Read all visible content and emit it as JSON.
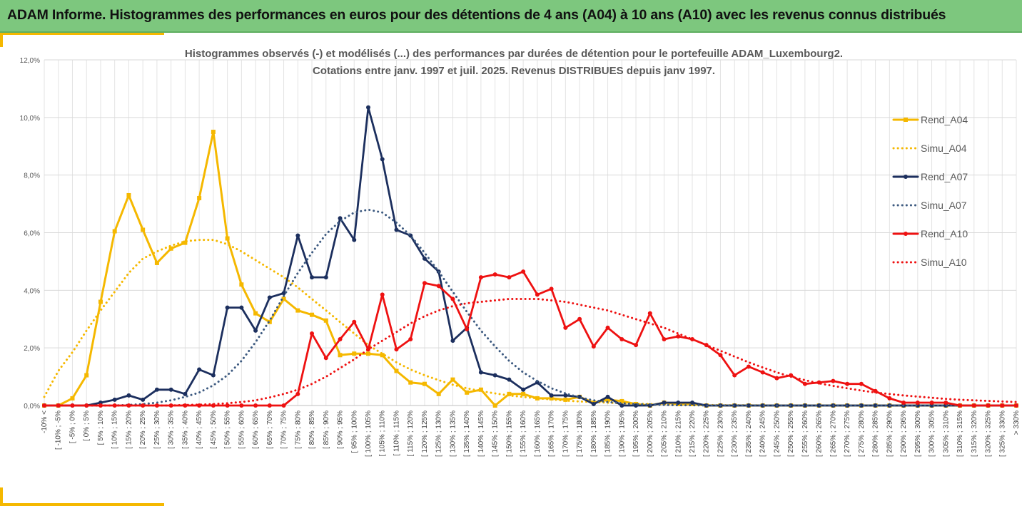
{
  "banner": {
    "title": "ADAM Informe. Histogrammes des performances en euros pour des détentions de 4 ans (A04) à 10 ans (A10) avec les revenus connus distribués"
  },
  "chart_data": {
    "type": "line",
    "title_line1": "Histogrammes observés (-) et modélisés (...) des performances par durées de détention pour le portefeuille ADAM_Luxembourg2.",
    "title_line2": "Cotations entre janv. 1997 et juil. 2025. Revenus DISTRIBUES depuis janv 1997.",
    "ylim": [
      0,
      12
    ],
    "yticks": [
      "0,0%",
      "2,0%",
      "4,0%",
      "6,0%",
      "8,0%",
      "10,0%",
      "12,0%"
    ],
    "grid": true,
    "legend_position": "right",
    "categories": [
      "-10% <",
      "[ -10% ; -5%",
      "[ -5% ; 0%",
      "[ 0% ; 5%",
      "[ 5% ; 10%",
      "[ 10% ; 15%",
      "[ 15% ; 20%",
      "[ 20% ; 25%",
      "[ 25% ; 30%",
      "[ 30% ; 35%",
      "[ 35% ; 40%",
      "[ 40% ; 45%",
      "[ 45% ; 50%",
      "[ 50% ; 55%",
      "[ 55% ; 60%",
      "[ 60% ; 65%",
      "[ 65% ; 70%",
      "[ 70% ; 75%",
      "[ 75% ; 80%",
      "[ 80% ; 85%",
      "[ 85% ; 90%",
      "[ 90% ; 95%",
      "[ 95% ; 100%",
      "[ 100% ; 105%",
      "[ 105% ; 110%",
      "[ 110% ; 115%",
      "[ 115% ; 120%",
      "[ 120% ; 125%",
      "[ 125% ; 130%",
      "[ 130% ; 135%",
      "[ 135% ; 140%",
      "[ 140% ; 145%",
      "[ 145% ; 150%",
      "[ 150% ; 155%",
      "[ 155% ; 160%",
      "[ 160% ; 165%",
      "[ 165% ; 170%",
      "[ 170% ; 175%",
      "[ 175% ; 180%",
      "[ 180% ; 185%",
      "[ 185% ; 190%",
      "[ 190% ; 195%",
      "[ 195% ; 200%",
      "[ 200% ; 205%",
      "[ 205% ; 210%",
      "[ 210% ; 215%",
      "[ 215% ; 220%",
      "[ 220% ; 225%",
      "[ 225% ; 230%",
      "[ 230% ; 235%",
      "[ 235% ; 240%",
      "[ 240% ; 245%",
      "[ 245% ; 250%",
      "[ 250% ; 255%",
      "[ 255% ; 260%",
      "[ 260% ; 265%",
      "[ 265% ; 270%",
      "[ 270% ; 275%",
      "[ 275% ; 280%",
      "[ 280% ; 285%",
      "[ 285% ; 290%",
      "[ 290% ; 295%",
      "[ 295% ; 300%",
      "[ 300% ; 305%",
      "[ 305% ; 310%",
      "[ 310% ; 315%",
      "[ 315% ; 320%",
      "[ 320% ; 325%",
      "[ 325% ; 330%",
      "> 330%"
    ],
    "series": [
      {
        "name": "Rend_A04",
        "color": "#f5b800",
        "style": "solid",
        "marker": "square",
        "values": [
          0,
          0,
          0.25,
          1.05,
          3.6,
          6.05,
          7.3,
          6.1,
          4.95,
          5.45,
          5.65,
          7.2,
          9.5,
          5.8,
          4.2,
          3.2,
          2.9,
          3.7,
          3.3,
          3.15,
          2.95,
          1.75,
          1.8,
          1.8,
          1.75,
          1.2,
          0.8,
          0.75,
          0.4,
          0.9,
          0.45,
          0.55,
          0.0,
          0.4,
          0.4,
          0.25,
          0.25,
          0.2,
          0.3,
          0.1,
          0.2,
          0.15,
          0.05,
          0.0,
          0.1,
          0.05,
          0.05,
          0.0,
          0,
          0,
          0,
          0,
          0,
          0,
          0,
          0,
          0,
          0,
          0,
          0,
          0,
          0,
          0,
          0,
          0,
          0,
          0,
          0,
          0,
          0
        ]
      },
      {
        "name": "Simu_A04",
        "color": "#f5b800",
        "style": "dotted",
        "marker": "none",
        "values": [
          0.3,
          1.2,
          1.85,
          2.6,
          3.3,
          3.95,
          4.6,
          5.1,
          5.35,
          5.55,
          5.7,
          5.75,
          5.75,
          5.6,
          5.35,
          5.05,
          4.75,
          4.45,
          4.1,
          3.7,
          3.3,
          2.9,
          2.5,
          2.1,
          1.8,
          1.5,
          1.25,
          1.05,
          0.88,
          0.72,
          0.6,
          0.5,
          0.42,
          0.35,
          0.3,
          0.25,
          0.21,
          0.17,
          0.14,
          0.12,
          0.1,
          0.08,
          0.06,
          0.05,
          0.04,
          0.03,
          0.02,
          0.02,
          0.01,
          0.01,
          0.01,
          0,
          0,
          0,
          0,
          0,
          0,
          0,
          0,
          0,
          0,
          0,
          0,
          0,
          0,
          0,
          0,
          0,
          0,
          0
        ]
      },
      {
        "name": "Rend_A07",
        "color": "#1c2f5e",
        "style": "solid",
        "marker": "circle",
        "values": [
          0,
          0,
          0,
          0,
          0.1,
          0.2,
          0.35,
          0.2,
          0.55,
          0.55,
          0.4,
          1.25,
          1.05,
          3.4,
          3.4,
          2.6,
          3.75,
          3.9,
          5.9,
          4.45,
          4.45,
          6.5,
          5.75,
          10.35,
          8.55,
          6.1,
          5.9,
          5.1,
          4.65,
          2.25,
          2.7,
          1.15,
          1.05,
          0.9,
          0.55,
          0.8,
          0.35,
          0.35,
          0.3,
          0.05,
          0.3,
          0.0,
          0.0,
          0.0,
          0.1,
          0.1,
          0.1,
          0,
          0,
          0,
          0,
          0,
          0,
          0,
          0,
          0,
          0,
          0,
          0,
          0,
          0,
          0,
          0,
          0,
          0,
          0,
          0,
          0,
          0,
          0
        ]
      },
      {
        "name": "Simu_A07",
        "color": "#3d5a80",
        "style": "dotted",
        "marker": "none",
        "values": [
          0,
          0,
          0,
          0,
          0,
          0,
          0.02,
          0.05,
          0.1,
          0.18,
          0.3,
          0.45,
          0.7,
          1.05,
          1.55,
          2.2,
          2.95,
          3.8,
          4.6,
          5.3,
          5.95,
          6.4,
          6.7,
          6.8,
          6.7,
          6.35,
          5.9,
          5.3,
          4.65,
          3.95,
          3.25,
          2.6,
          2.05,
          1.55,
          1.15,
          0.85,
          0.6,
          0.42,
          0.28,
          0.18,
          0.12,
          0.08,
          0.05,
          0.03,
          0.02,
          0.01,
          0.01,
          0,
          0,
          0,
          0,
          0,
          0,
          0,
          0,
          0,
          0,
          0,
          0,
          0,
          0,
          0,
          0,
          0,
          0,
          0,
          0,
          0,
          0,
          0
        ]
      },
      {
        "name": "Rend_A10",
        "color": "#ee1111",
        "style": "solid",
        "marker": "circle",
        "values": [
          0,
          0,
          0,
          0,
          0,
          0,
          0,
          0,
          0,
          0,
          0,
          0,
          0,
          0,
          0,
          0,
          0,
          0,
          0.4,
          2.5,
          1.65,
          2.3,
          2.9,
          1.95,
          3.85,
          1.95,
          2.3,
          4.25,
          4.15,
          3.7,
          2.65,
          4.45,
          4.55,
          4.45,
          4.65,
          3.85,
          4.05,
          2.7,
          3.0,
          2.05,
          2.7,
          2.3,
          2.1,
          3.2,
          2.3,
          2.4,
          2.3,
          2.1,
          1.75,
          1.05,
          1.35,
          1.15,
          0.95,
          1.05,
          0.75,
          0.8,
          0.85,
          0.75,
          0.75,
          0.5,
          0.25,
          0.1,
          0.1,
          0.1,
          0.1,
          0.0,
          0.0,
          0.0,
          0.0,
          0.0
        ]
      },
      {
        "name": "Simu_A10",
        "color": "#ee1111",
        "style": "dotted",
        "marker": "none",
        "values": [
          0,
          0,
          0,
          0,
          0,
          0,
          0,
          0,
          0,
          0,
          0.02,
          0.03,
          0.05,
          0.08,
          0.12,
          0.18,
          0.28,
          0.4,
          0.55,
          0.75,
          1.0,
          1.3,
          1.6,
          1.95,
          2.25,
          2.55,
          2.85,
          3.1,
          3.3,
          3.45,
          3.55,
          3.6,
          3.65,
          3.7,
          3.7,
          3.7,
          3.65,
          3.6,
          3.5,
          3.4,
          3.3,
          3.15,
          3.0,
          2.85,
          2.7,
          2.5,
          2.3,
          2.1,
          1.9,
          1.7,
          1.5,
          1.32,
          1.15,
          1.0,
          0.88,
          0.77,
          0.68,
          0.6,
          0.52,
          0.45,
          0.4,
          0.35,
          0.31,
          0.27,
          0.23,
          0.2,
          0.18,
          0.16,
          0.14,
          0.12
        ]
      }
    ]
  }
}
